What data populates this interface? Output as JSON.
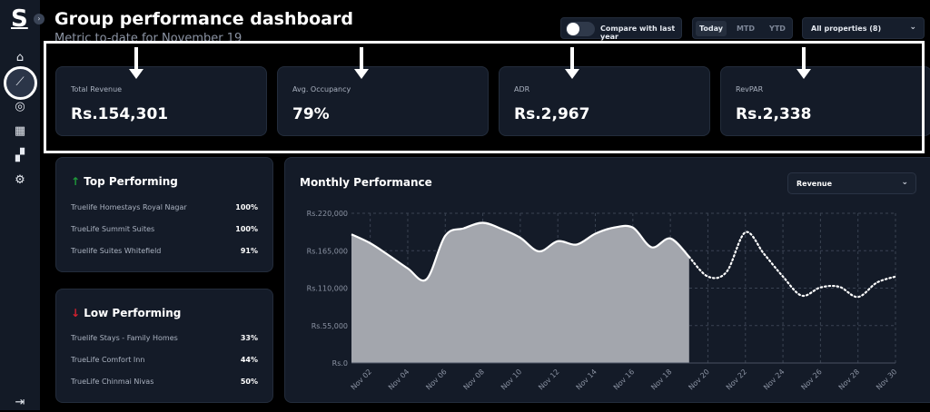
{
  "sidebar": {
    "logo": "S",
    "items": [
      "home-icon",
      "trend-icon",
      "search-analytics-icon",
      "table-icon",
      "dashboard-icon",
      "settings-icon"
    ],
    "active": "trend-icon",
    "logout": "logout-icon"
  },
  "header": {
    "title": "Group performance dashboard",
    "subtitle": "Metric to-date for November 19"
  },
  "controls": {
    "compare_label": "Compare with last year",
    "compare_on": false,
    "periods": [
      "Today",
      "MTD",
      "YTD"
    ],
    "active_period": "Today",
    "property_select": "All properties (8)"
  },
  "kpis": [
    {
      "label": "Total Revenue",
      "value": "Rs.154,301"
    },
    {
      "label": "Avg. Occupancy",
      "value": "79%"
    },
    {
      "label": "ADR",
      "value": "Rs.2,967"
    },
    {
      "label": "RevPAR",
      "value": "Rs.2,338"
    }
  ],
  "top": {
    "title": "Top Performing",
    "arrow": "↑",
    "items": [
      {
        "name": "Truelife Homestays Royal Nagar",
        "value": "100%"
      },
      {
        "name": "TrueLife Summit Suites",
        "value": "100%"
      },
      {
        "name": "Truelife Suites Whitefield",
        "value": "91%"
      }
    ]
  },
  "low": {
    "title": "Low Performing",
    "arrow": "↓",
    "items": [
      {
        "name": "Truelife Stays - Family Homes",
        "value": "33%"
      },
      {
        "name": "TrueLife Comfort Inn",
        "value": "44%"
      },
      {
        "name": "TrueLife Chinmai Nivas",
        "value": "50%"
      }
    ]
  },
  "chart_panel": {
    "title": "Monthly Performance",
    "metric": "Revenue"
  },
  "chart_data": {
    "type": "area",
    "title": "Monthly Performance",
    "ylim": [
      0,
      220000
    ],
    "yticks": [
      "Rs.0",
      "Rs.55,000",
      "Rs.110,000",
      "Rs.165,000",
      "Rs.220,000"
    ],
    "ytick_values": [
      0,
      55000,
      110000,
      165000,
      220000
    ],
    "xticks": [
      "Nov 02",
      "Nov 04",
      "Nov 06",
      "Nov 08",
      "Nov 10",
      "Nov 12",
      "Nov 14",
      "Nov 16",
      "Nov 18",
      "Nov 20",
      "Nov 22",
      "Nov 24",
      "Nov 26",
      "Nov 28",
      "Nov 30"
    ],
    "x_days": [
      1,
      2,
      3,
      4,
      5,
      6,
      7,
      8,
      9,
      10,
      11,
      12,
      13,
      14,
      15,
      16,
      17,
      18,
      19,
      20,
      21,
      22,
      23,
      24,
      25,
      26,
      27,
      28,
      29,
      30
    ],
    "series": [
      {
        "name": "Actual",
        "style": "filled area",
        "values": [
          189000,
          176000,
          158000,
          139000,
          123000,
          187000,
          198000,
          206000,
          197000,
          184000,
          164000,
          179000,
          174000,
          190000,
          199000,
          199000,
          170000,
          183000,
          156000
        ]
      },
      {
        "name": "Forecast",
        "style": "dotted",
        "start_day": 19,
        "values": [
          156000,
          127000,
          134000,
          192000,
          160000,
          127000,
          99000,
          111000,
          112000,
          97000,
          118000,
          127000
        ]
      }
    ],
    "grid": true,
    "colors": {
      "area": "#a3a6ad",
      "line": "#ffffff"
    }
  }
}
